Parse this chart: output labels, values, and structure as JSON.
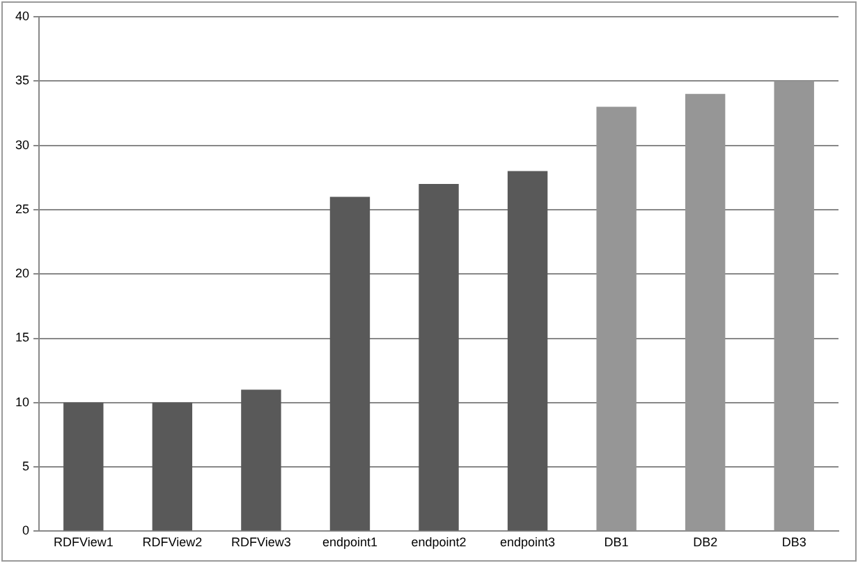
{
  "chart_data": {
    "type": "bar",
    "categories": [
      "RDFView1",
      "RDFView2",
      "RDFView3",
      "endpoint1",
      "endpoint2",
      "endpoint3",
      "DB1",
      "DB2",
      "DB3"
    ],
    "values": [
      10,
      10,
      11,
      26,
      27,
      28,
      33,
      34,
      35
    ],
    "colors": [
      "#595959",
      "#595959",
      "#595959",
      "#595959",
      "#595959",
      "#595959",
      "#969696",
      "#969696",
      "#969696"
    ],
    "ylim": [
      0,
      40
    ],
    "yticks": [
      0,
      5,
      10,
      15,
      20,
      25,
      30,
      35,
      40
    ],
    "grid": "y",
    "legend": false
  }
}
